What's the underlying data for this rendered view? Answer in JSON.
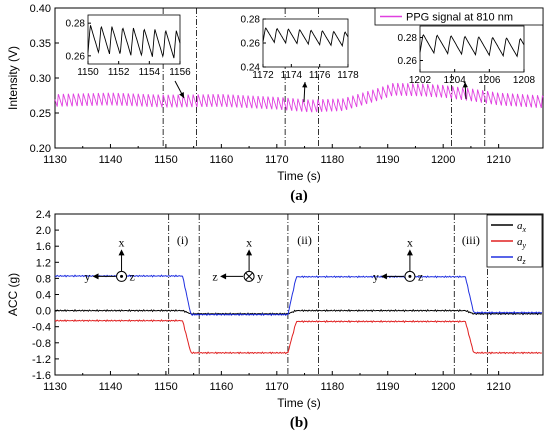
{
  "chart_data": [
    {
      "type": "line",
      "panel_label": "(a)",
      "xlabel": "Time (s)",
      "ylabel": "Intensity (V)",
      "xlim": [
        1130,
        1218
      ],
      "ylim": [
        0.2,
        0.4
      ],
      "xticks": [
        "1130",
        "1140",
        "1150",
        "1160",
        "1170",
        "1180",
        "1190",
        "1200",
        "1210"
      ],
      "yticks": [
        "0.20",
        "0.25",
        "0.30",
        "0.35",
        "0.40"
      ],
      "legend": {
        "position": "top-right"
      },
      "series": [
        {
          "name": "PPG signal at 810 nm",
          "color": "#e040e0",
          "pulse_period_s": 0.9,
          "pulse_amplitude_V": 0.018,
          "baseline_x": [
            1130,
            1140,
            1150,
            1160,
            1170,
            1176,
            1182,
            1188,
            1191,
            1196,
            1200,
            1205,
            1210,
            1218
          ],
          "baseline_y": [
            0.268,
            0.27,
            0.267,
            0.268,
            0.264,
            0.26,
            0.262,
            0.276,
            0.284,
            0.283,
            0.281,
            0.276,
            0.27,
            0.266
          ]
        }
      ],
      "event_markers_x": [
        1149.5,
        1155.5,
        1171.5,
        1177.5,
        1201.5,
        1207.5
      ],
      "insets": [
        {
          "xlim": [
            1150,
            1156
          ],
          "ylim": [
            0.255,
            0.285
          ],
          "xticks": [
            "1150",
            "1152",
            "1154",
            "1156"
          ],
          "yticks": [
            "0.26",
            "0.28"
          ],
          "period_s": 0.7,
          "low": 0.262,
          "high": 0.279
        },
        {
          "xlim": [
            1172,
            1178
          ],
          "ylim": [
            0.24,
            0.28
          ],
          "xticks": [
            "1172",
            "1174",
            "1176",
            "1178"
          ],
          "yticks": [
            "0.24",
            "0.26",
            "0.28"
          ],
          "period_s": 0.8,
          "low": 0.261,
          "high": 0.273
        },
        {
          "xlim": [
            1202,
            1208
          ],
          "ylim": [
            0.25,
            0.29
          ],
          "xticks": [
            "1202",
            "1204",
            "1206",
            "1208"
          ],
          "yticks": [
            "0.26",
            "0.28"
          ],
          "period_s": 0.8,
          "low": 0.267,
          "high": 0.283
        }
      ]
    },
    {
      "type": "line",
      "panel_label": "(b)",
      "xlabel": "Time (s)",
      "ylabel": "ACC (g)",
      "xlim": [
        1130,
        1218
      ],
      "ylim": [
        -1.6,
        2.4
      ],
      "xticks": [
        "1130",
        "1140",
        "1150",
        "1160",
        "1170",
        "1180",
        "1190",
        "1200",
        "1210"
      ],
      "yticks": [
        "-1.6",
        "-1.2",
        "-0.8",
        "-0.4",
        "0.0",
        "0.4",
        "0.8",
        "1.2",
        "1.6",
        "2.0",
        "2.4"
      ],
      "legend": {
        "position": "top-right"
      },
      "series": [
        {
          "name": "a",
          "subscript": "x",
          "color": "#000000",
          "x": [
            1130,
            1153,
            1154.5,
            1172,
            1173.5,
            1204,
            1205.5,
            1218
          ],
          "y": [
            0.0,
            0.0,
            -0.08,
            -0.08,
            0.0,
            0.0,
            -0.08,
            -0.08
          ]
        },
        {
          "name": "a",
          "subscript": "y",
          "color": "#e02020",
          "x": [
            1130,
            1153,
            1154.5,
            1172,
            1173.5,
            1204,
            1205.5,
            1218
          ],
          "y": [
            -0.25,
            -0.25,
            -1.05,
            -1.05,
            -0.27,
            -0.27,
            -1.05,
            -1.05
          ]
        },
        {
          "name": "a",
          "subscript": "z",
          "color": "#2030e0",
          "x": [
            1130,
            1153,
            1154.5,
            1172,
            1173.5,
            1204,
            1205.5,
            1218
          ],
          "y": [
            0.86,
            0.86,
            -0.1,
            -0.1,
            0.84,
            0.84,
            -0.05,
            -0.05
          ]
        }
      ],
      "event_markers_x": [
        1150.5,
        1156,
        1172,
        1177.5,
        1202,
        1208
      ],
      "segment_labels": [
        {
          "text": "(i)",
          "x": 1153
        },
        {
          "text": "(ii)",
          "x": 1175
        },
        {
          "text": "(iii)",
          "x": 1205
        }
      ],
      "axis_glyphs": [
        {
          "x": 1142,
          "up": "x",
          "left": "y",
          "right": "z",
          "center": "dot"
        },
        {
          "x": 1165,
          "up": "x",
          "left": "z",
          "right": "y",
          "center": "cross"
        },
        {
          "x": 1194,
          "up": "x",
          "left": "y",
          "right": "z",
          "center": "dot"
        }
      ]
    }
  ]
}
